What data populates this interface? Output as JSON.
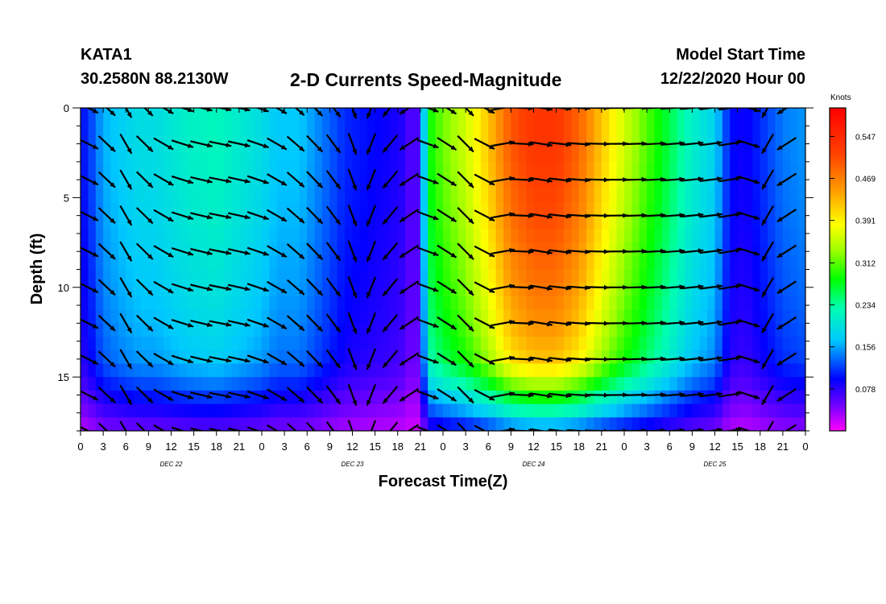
{
  "header": {
    "station": "KATA1",
    "location": "30.2580N 88.2130W",
    "title": "2-D Currents Speed-Magnitude",
    "model_label": "Model Start Time",
    "model_time": "12/22/2020 Hour 00"
  },
  "chart_data": {
    "type": "heatmap",
    "title": "2-D Currents Speed-Magnitude",
    "xlabel": "Forecast Time(Z)",
    "ylabel": "Depth (ft)",
    "x_range_hours": [
      0,
      96
    ],
    "x_tick_hours": [
      0,
      3,
      6,
      9,
      12,
      15,
      18,
      21,
      24,
      27,
      30,
      33,
      36,
      39,
      42,
      45,
      48,
      51,
      54,
      57,
      60,
      63,
      66,
      69,
      72,
      75,
      78,
      81,
      84,
      87,
      90,
      93,
      96
    ],
    "x_tick_labels": [
      "0",
      "3",
      "6",
      "9",
      "12",
      "15",
      "18",
      "21",
      "0",
      "3",
      "6",
      "9",
      "12",
      "15",
      "18",
      "21",
      "0",
      "3",
      "6",
      "9",
      "12",
      "15",
      "18",
      "21",
      "0",
      "3",
      "6",
      "9",
      "12",
      "15",
      "18",
      "21",
      "0"
    ],
    "date_labels": [
      {
        "hour": 12,
        "text": "DEC 22"
      },
      {
        "hour": 36,
        "text": "DEC 23"
      },
      {
        "hour": 60,
        "text": "DEC 24"
      },
      {
        "hour": 84,
        "text": "DEC 25"
      }
    ],
    "y_range_ft": [
      0,
      18
    ],
    "y_ticks": [
      0,
      5,
      10,
      15
    ],
    "y_tick_labels": [
      "0",
      "5",
      "10",
      "15"
    ],
    "colorbar": {
      "unit": "Knots",
      "min": 0,
      "max": 0.6,
      "tick_values": [
        0.547,
        0.469,
        0.391,
        0.312,
        0.234,
        0.156,
        0.078
      ],
      "tick_labels": [
        "0.547",
        "0.469",
        "0.391",
        "0.312",
        "0.234",
        "0.156",
        "0.078"
      ]
    },
    "speed_profile_surface": [
      [
        0,
        0.1
      ],
      [
        1,
        0.11
      ],
      [
        3,
        0.16
      ],
      [
        6,
        0.18
      ],
      [
        8,
        0.19
      ],
      [
        10,
        0.19
      ],
      [
        12,
        0.2
      ],
      [
        14,
        0.21
      ],
      [
        18,
        0.22
      ],
      [
        22,
        0.2
      ],
      [
        24,
        0.19
      ],
      [
        26,
        0.17
      ],
      [
        29,
        0.17
      ],
      [
        31,
        0.15
      ],
      [
        33,
        0.13
      ],
      [
        35,
        0.11
      ],
      [
        38,
        0.1
      ],
      [
        41,
        0.09
      ],
      [
        43,
        0.08
      ],
      [
        44,
        0.05
      ],
      [
        45,
        0.08
      ],
      [
        46,
        0.28
      ],
      [
        48,
        0.32
      ],
      [
        51,
        0.36
      ],
      [
        54,
        0.42
      ],
      [
        57,
        0.5
      ],
      [
        60,
        0.53
      ],
      [
        63,
        0.53
      ],
      [
        66,
        0.49
      ],
      [
        69,
        0.42
      ],
      [
        72,
        0.36
      ],
      [
        75,
        0.31
      ],
      [
        78,
        0.26
      ],
      [
        81,
        0.21
      ],
      [
        84,
        0.18
      ],
      [
        86,
        0.1
      ],
      [
        88,
        0.09
      ],
      [
        90,
        0.11
      ],
      [
        93,
        0.14
      ],
      [
        96,
        0.15
      ]
    ],
    "depth_speed_factor": [
      [
        0,
        1.0
      ],
      [
        2,
        1.0
      ],
      [
        4,
        0.98
      ],
      [
        6,
        0.96
      ],
      [
        8,
        0.93
      ],
      [
        10,
        0.9
      ],
      [
        12,
        0.86
      ],
      [
        14,
        0.8
      ],
      [
        15,
        0.7
      ],
      [
        16,
        0.55
      ],
      [
        17,
        0.42
      ],
      [
        18,
        0.25
      ]
    ],
    "current_direction_deg_toward": [
      [
        0,
        110
      ],
      [
        6,
        150
      ],
      [
        10,
        125
      ],
      [
        14,
        105
      ],
      [
        20,
        100
      ],
      [
        24,
        110
      ],
      [
        28,
        130
      ],
      [
        33,
        140
      ],
      [
        36,
        160
      ],
      [
        39,
        210
      ],
      [
        41,
        220
      ],
      [
        44,
        240
      ],
      [
        46,
        110
      ],
      [
        52,
        140
      ],
      [
        56,
        80
      ],
      [
        60,
        100
      ],
      [
        65,
        95
      ],
      [
        70,
        90
      ],
      [
        80,
        85
      ],
      [
        88,
        80
      ],
      [
        90,
        190
      ],
      [
        92,
        230
      ],
      [
        96,
        250
      ]
    ]
  }
}
